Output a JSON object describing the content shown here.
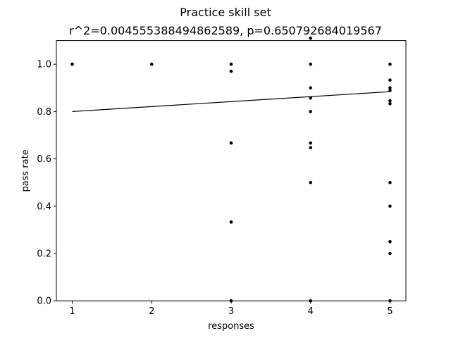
{
  "chart_data": {
    "type": "scatter",
    "title": "Practice skill set",
    "subtitle": "r^2=0.004555388494862589, p=0.650792684019567",
    "xlabel": "responses",
    "ylabel": "pass rate",
    "xlim": [
      0.8,
      5.2
    ],
    "ylim": [
      0.0,
      1.1
    ],
    "xticks": [
      "1",
      "2",
      "3",
      "4",
      "5"
    ],
    "yticks": [
      "0.0",
      "0.2",
      "0.4",
      "0.6",
      "0.8",
      "1.0"
    ],
    "grid": false,
    "marker_color": "#000000",
    "series": [
      {
        "points": [
          [
            1,
            1.0
          ],
          [
            2,
            1.0
          ],
          [
            3,
            1.0
          ],
          [
            3,
            0.97
          ],
          [
            3,
            0.667
          ],
          [
            3,
            0.333
          ],
          [
            3,
            0.0
          ],
          [
            4,
            1.11
          ],
          [
            4,
            1.0
          ],
          [
            4,
            0.9
          ],
          [
            4,
            0.857
          ],
          [
            4,
            0.8
          ],
          [
            4,
            0.667
          ],
          [
            4,
            0.647
          ],
          [
            4,
            0.5
          ],
          [
            4,
            0.0
          ],
          [
            5,
            1.0
          ],
          [
            5,
            0.933
          ],
          [
            5,
            0.9
          ],
          [
            5,
            0.889
          ],
          [
            5,
            0.846
          ],
          [
            5,
            0.833
          ],
          [
            5,
            0.5
          ],
          [
            5,
            0.4
          ],
          [
            5,
            0.25
          ],
          [
            5,
            0.2
          ],
          [
            5,
            0.0
          ]
        ]
      }
    ],
    "fit_line": {
      "x": [
        1,
        5
      ],
      "y": [
        0.8,
        0.884
      ]
    }
  }
}
